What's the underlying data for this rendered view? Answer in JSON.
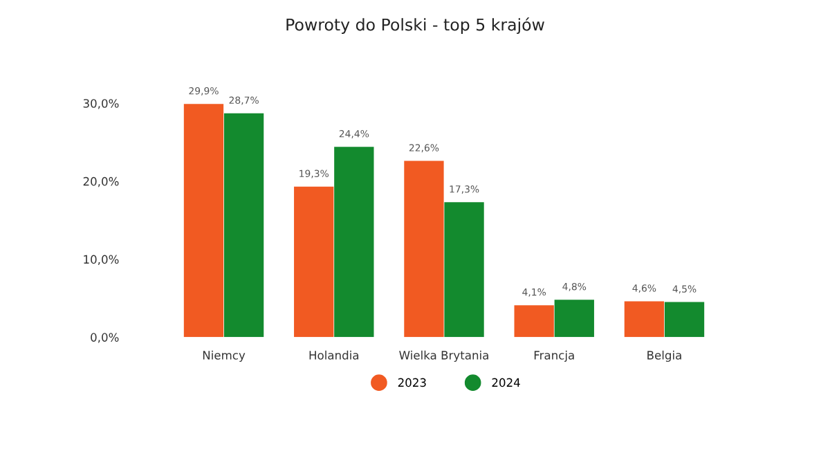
{
  "chart_data": {
    "type": "bar",
    "title": "Powroty do Polski - top 5 krajów",
    "categories": [
      "Niemcy",
      "Holandia",
      "Wielka Brytania",
      "Francja",
      "Belgia"
    ],
    "series": [
      {
        "name": "2023",
        "color": "#f15a22",
        "values": [
          29.9,
          19.3,
          22.6,
          4.1,
          4.6
        ],
        "value_labels": [
          "29,9%",
          "19,3%",
          "22,6%",
          "4,1%",
          "4,6%"
        ]
      },
      {
        "name": "2024",
        "color": "#138a2e",
        "values": [
          28.7,
          24.4,
          17.3,
          4.8,
          4.5
        ],
        "value_labels": [
          "28,7%",
          "24,4%",
          "17,3%",
          "4,8%",
          "4,5%"
        ]
      }
    ],
    "ylim": [
      0,
      30
    ],
    "yticks": [
      {
        "value": 0,
        "label": "0,0%"
      },
      {
        "value": 10,
        "label": "10,0%"
      },
      {
        "value": 20,
        "label": "20,0%"
      },
      {
        "value": 30,
        "label": "30,0%"
      }
    ],
    "grid": false,
    "legend": "bottom"
  }
}
